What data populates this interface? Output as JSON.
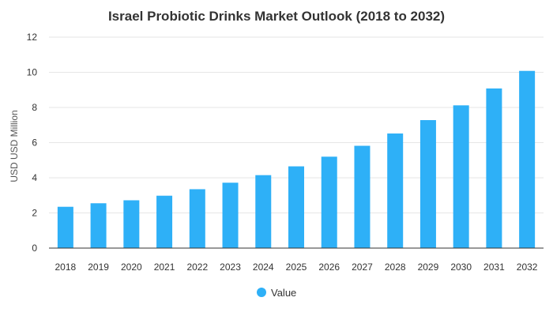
{
  "chart_data": {
    "type": "bar",
    "title": "Israel Probiotic Drinks Market Outlook (2018 to 2032)",
    "xlabel": "",
    "ylabel": "USD USD Million",
    "categories": [
      "2018",
      "2019",
      "2020",
      "2021",
      "2022",
      "2023",
      "2024",
      "2025",
      "2026",
      "2027",
      "2028",
      "2029",
      "2030",
      "2031",
      "2032"
    ],
    "series": [
      {
        "name": "Value",
        "values": [
          2.35,
          2.55,
          2.72,
          2.98,
          3.35,
          3.72,
          4.15,
          4.65,
          5.2,
          5.82,
          6.52,
          7.28,
          8.12,
          9.08,
          10.08
        ]
      }
    ],
    "ylim": [
      0,
      12
    ],
    "yticks": [
      0,
      2,
      4,
      6,
      8,
      10,
      12
    ],
    "grid": true,
    "legend": "bottom-center",
    "bar_color": "#2eb0f7",
    "grid_color": "#e6e6e6",
    "axis_color": "#333333"
  }
}
